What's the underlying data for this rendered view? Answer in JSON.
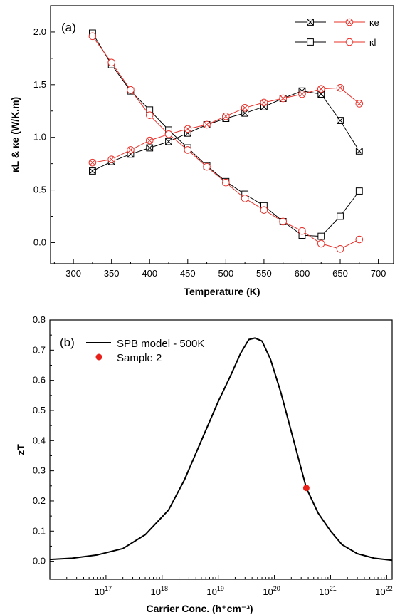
{
  "chart_data": [
    {
      "type": "line",
      "panel_label": "(a)",
      "xlabel": "Temperature (K)",
      "ylabel": "κL & κe (W/K.m)",
      "xlim": [
        270,
        720
      ],
      "ylim": [
        -0.2,
        2.25
      ],
      "x_ticks": [
        300,
        350,
        400,
        450,
        500,
        550,
        600,
        650,
        700
      ],
      "y_ticks": [
        0.0,
        0.5,
        1.0,
        1.5,
        2.0
      ],
      "x": [
        325,
        350,
        375,
        400,
        425,
        450,
        475,
        500,
        525,
        550,
        575,
        600,
        625,
        650,
        675
      ],
      "legend_position": "top-right",
      "series": [
        {
          "name": "",
          "marker": "square-x",
          "color": "#000000",
          "values": [
            0.68,
            0.77,
            0.84,
            0.9,
            0.96,
            1.04,
            1.12,
            1.18,
            1.23,
            1.29,
            1.37,
            1.44,
            1.41,
            1.16,
            0.87
          ]
        },
        {
          "name": "κe",
          "marker": "circle-x",
          "color": "#e8312a",
          "values": [
            0.76,
            0.79,
            0.88,
            0.97,
            1.03,
            1.08,
            1.12,
            1.2,
            1.28,
            1.33,
            1.37,
            1.41,
            1.46,
            1.47,
            1.32
          ]
        },
        {
          "name": "",
          "marker": "square",
          "color": "#000000",
          "values": [
            1.99,
            1.69,
            1.44,
            1.26,
            1.07,
            0.9,
            0.73,
            0.58,
            0.46,
            0.35,
            0.2,
            0.07,
            0.06,
            0.25,
            0.49
          ]
        },
        {
          "name": "κl",
          "marker": "circle",
          "color": "#e8312a",
          "values": [
            1.96,
            1.71,
            1.45,
            1.21,
            1.03,
            0.88,
            0.72,
            0.57,
            0.42,
            0.31,
            0.2,
            0.11,
            -0.01,
            -0.06,
            0.03
          ]
        }
      ]
    },
    {
      "type": "line",
      "panel_label": "(b)",
      "xlabel": "Carrier Conc. (h⁺cm⁻³)",
      "ylabel": "zT",
      "x_scale": "log",
      "xlim": [
        1e+16,
        1.25e+22
      ],
      "ylim": [
        -0.06,
        0.8
      ],
      "x_ticks": [
        1e+17,
        1e+18,
        1e+19,
        1e+20,
        1e+21,
        1e+22
      ],
      "x_tick_labels": [
        {
          "base": "10",
          "exp": "17"
        },
        {
          "base": "10",
          "exp": "18"
        },
        {
          "base": "10",
          "exp": "19"
        },
        {
          "base": "10",
          "exp": "20"
        },
        {
          "base": "10",
          "exp": "21"
        },
        {
          "base": "10",
          "exp": "22"
        }
      ],
      "y_ticks": [
        0.0,
        0.1,
        0.2,
        0.3,
        0.4,
        0.5,
        0.6,
        0.7,
        0.8
      ],
      "legend_position": "top-left",
      "series": [
        {
          "name": "SPB model - 500K",
          "color": "#000000",
          "x": [
            1e+16,
            2.5e+16,
            7e+16,
            2e+17,
            5e+17,
            1.3e+18,
            2.5e+18,
            5e+18,
            1e+19,
            1.7e+19,
            2.5e+19,
            3.5e+19,
            4.5e+19,
            6e+19,
            8.5e+19,
            1.3e+20,
            2e+20,
            3.7e+20,
            6e+20,
            1e+21,
            1.6e+21,
            3e+21,
            6e+21,
            1.25e+22
          ],
          "y": [
            0.006,
            0.01,
            0.021,
            0.042,
            0.088,
            0.17,
            0.27,
            0.4,
            0.53,
            0.62,
            0.69,
            0.735,
            0.74,
            0.73,
            0.67,
            0.56,
            0.43,
            0.243,
            0.16,
            0.1,
            0.055,
            0.025,
            0.01,
            0.003
          ]
        },
        {
          "name": "Sample 2",
          "type": "scatter",
          "color": "#e8201a",
          "x": [
            3.7e+20
          ],
          "y": [
            0.243
          ]
        }
      ]
    }
  ]
}
